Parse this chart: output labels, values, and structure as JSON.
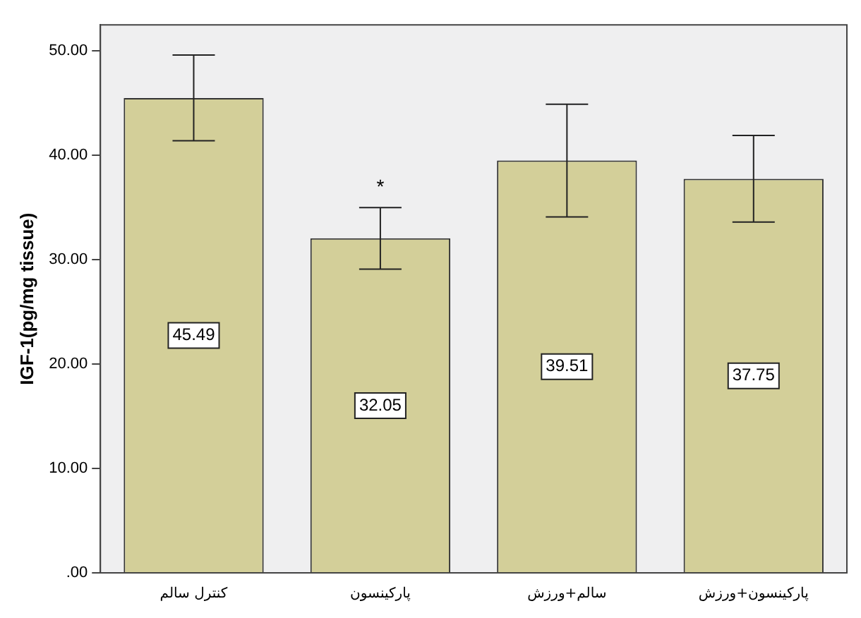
{
  "chart_data": {
    "type": "bar",
    "ylabel": "IGF-1(pg/mg tissue)",
    "categories": [
      "کنترل سالم",
      "پارکینسون",
      "سالم+ورزش",
      "پارکینسون+ورزش"
    ],
    "values": [
      45.49,
      32.05,
      39.51,
      37.75
    ],
    "errors": [
      [
        41.4,
        49.6
      ],
      [
        29.1,
        35.0
      ],
      [
        34.1,
        44.9
      ],
      [
        33.6,
        41.9
      ]
    ],
    "color": "#d3cf99",
    "ylim": [
      0,
      52.5
    ],
    "yticks": [
      {
        "value": 0,
        "label": ".00"
      },
      {
        "value": 10,
        "label": "10.00"
      },
      {
        "value": 20,
        "label": "20.00"
      },
      {
        "value": 30,
        "label": "30.00"
      },
      {
        "value": 40,
        "label": "40.00"
      },
      {
        "value": 50,
        "label": "50.00"
      }
    ],
    "data_labels": true,
    "grid": false,
    "legend": false,
    "annotations": [
      {
        "text": "*",
        "x": "پارکینسون",
        "y": 35.0
      }
    ]
  }
}
